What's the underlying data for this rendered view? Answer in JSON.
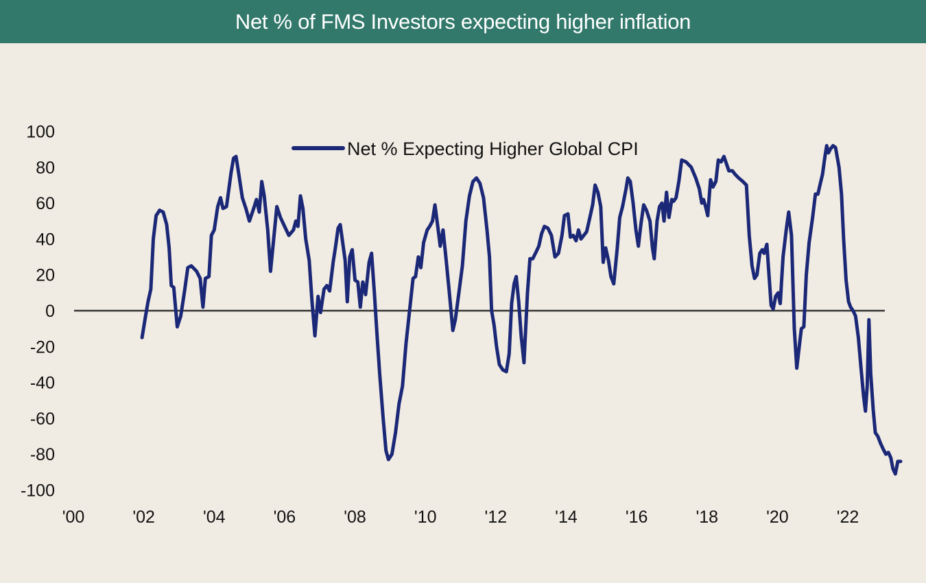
{
  "header": {
    "title": "Net % of FMS Investors expecting higher inflation"
  },
  "colors": {
    "header_bg": "#32796b",
    "line": "#1b2877",
    "zero_line": "#333333",
    "background": "#f1ece3"
  },
  "chart_data": {
    "type": "line",
    "title": "Net % of FMS Investors expecting higher inflation",
    "xlabel": "",
    "ylabel": "",
    "xlim": [
      2000,
      2023.3
    ],
    "ylim": [
      -100,
      100
    ],
    "yticks": [
      100,
      80,
      60,
      40,
      20,
      0,
      -20,
      -40,
      -60,
      -80,
      -100
    ],
    "ytick_labels": [
      "100",
      "80",
      "60",
      "40",
      "20",
      "0",
      "-20",
      "-40",
      "-60",
      "-80",
      "-100"
    ],
    "xticks": [
      2000,
      2002,
      2004,
      2006,
      2008,
      2010,
      2012,
      2014,
      2016,
      2018,
      2020,
      2022
    ],
    "xtick_labels": [
      "'00",
      "'02",
      "'04",
      "'06",
      "'08",
      "'10",
      "'12",
      "'14",
      "'16",
      "'18",
      "'20",
      "'22"
    ],
    "grid": false,
    "zero_line": true,
    "legend": {
      "position": "top-center",
      "entries": [
        "Net % Expecting Higher Global CPI"
      ]
    },
    "series": [
      {
        "name": "Net % Expecting Higher Global CPI",
        "points": [
          [
            2001.95,
            -15
          ],
          [
            2002.05,
            -3
          ],
          [
            2002.12,
            5
          ],
          [
            2002.2,
            12
          ],
          [
            2002.27,
            40
          ],
          [
            2002.35,
            53
          ],
          [
            2002.45,
            56
          ],
          [
            2002.55,
            55
          ],
          [
            2002.65,
            48
          ],
          [
            2002.72,
            35
          ],
          [
            2002.78,
            14
          ],
          [
            2002.85,
            13
          ],
          [
            2002.95,
            -9
          ],
          [
            2003.05,
            -3
          ],
          [
            2003.15,
            10
          ],
          [
            2003.25,
            24
          ],
          [
            2003.35,
            25
          ],
          [
            2003.5,
            22
          ],
          [
            2003.6,
            18
          ],
          [
            2003.68,
            2
          ],
          [
            2003.75,
            18
          ],
          [
            2003.85,
            19
          ],
          [
            2003.92,
            42
          ],
          [
            2004.0,
            45
          ],
          [
            2004.1,
            58
          ],
          [
            2004.18,
            63
          ],
          [
            2004.25,
            57
          ],
          [
            2004.35,
            58
          ],
          [
            2004.48,
            77
          ],
          [
            2004.55,
            85
          ],
          [
            2004.62,
            86
          ],
          [
            2004.7,
            76
          ],
          [
            2004.8,
            63
          ],
          [
            2004.9,
            57
          ],
          [
            2005.0,
            50
          ],
          [
            2005.12,
            57
          ],
          [
            2005.2,
            62
          ],
          [
            2005.28,
            55
          ],
          [
            2005.35,
            72
          ],
          [
            2005.42,
            64
          ],
          [
            2005.52,
            45
          ],
          [
            2005.6,
            22
          ],
          [
            2005.68,
            38
          ],
          [
            2005.78,
            58
          ],
          [
            2005.88,
            52
          ],
          [
            2006.0,
            47
          ],
          [
            2006.12,
            42
          ],
          [
            2006.25,
            45
          ],
          [
            2006.32,
            50
          ],
          [
            2006.38,
            47
          ],
          [
            2006.45,
            64
          ],
          [
            2006.52,
            57
          ],
          [
            2006.6,
            40
          ],
          [
            2006.7,
            28
          ],
          [
            2006.78,
            5
          ],
          [
            2006.86,
            -14
          ],
          [
            2006.95,
            8
          ],
          [
            2007.02,
            -1
          ],
          [
            2007.12,
            12
          ],
          [
            2007.2,
            14
          ],
          [
            2007.28,
            11
          ],
          [
            2007.38,
            27
          ],
          [
            2007.45,
            36
          ],
          [
            2007.52,
            46
          ],
          [
            2007.58,
            48
          ],
          [
            2007.65,
            38
          ],
          [
            2007.72,
            28
          ],
          [
            2007.78,
            5
          ],
          [
            2007.85,
            30
          ],
          [
            2007.92,
            34
          ],
          [
            2008.0,
            17
          ],
          [
            2008.08,
            16
          ],
          [
            2008.15,
            2
          ],
          [
            2008.22,
            16
          ],
          [
            2008.3,
            9
          ],
          [
            2008.4,
            27
          ],
          [
            2008.47,
            32
          ],
          [
            2008.55,
            10
          ],
          [
            2008.62,
            -12
          ],
          [
            2008.7,
            -35
          ],
          [
            2008.8,
            -60
          ],
          [
            2008.88,
            -78
          ],
          [
            2008.95,
            -83
          ],
          [
            2009.05,
            -80
          ],
          [
            2009.15,
            -68
          ],
          [
            2009.25,
            -52
          ],
          [
            2009.35,
            -42
          ],
          [
            2009.45,
            -18
          ],
          [
            2009.55,
            0
          ],
          [
            2009.65,
            18
          ],
          [
            2009.72,
            19
          ],
          [
            2009.8,
            30
          ],
          [
            2009.87,
            24
          ],
          [
            2009.95,
            38
          ],
          [
            2010.05,
            45
          ],
          [
            2010.12,
            47
          ],
          [
            2010.2,
            50
          ],
          [
            2010.27,
            59
          ],
          [
            2010.35,
            47
          ],
          [
            2010.42,
            36
          ],
          [
            2010.5,
            45
          ],
          [
            2010.58,
            30
          ],
          [
            2010.68,
            10
          ],
          [
            2010.78,
            -11
          ],
          [
            2010.85,
            -5
          ],
          [
            2010.95,
            10
          ],
          [
            2011.05,
            25
          ],
          [
            2011.15,
            50
          ],
          [
            2011.25,
            64
          ],
          [
            2011.35,
            72
          ],
          [
            2011.45,
            74
          ],
          [
            2011.55,
            71
          ],
          [
            2011.65,
            63
          ],
          [
            2011.75,
            45
          ],
          [
            2011.82,
            30
          ],
          [
            2011.88,
            0
          ],
          [
            2011.95,
            -8
          ],
          [
            2012.02,
            -20
          ],
          [
            2012.1,
            -30
          ],
          [
            2012.2,
            -33
          ],
          [
            2012.3,
            -34
          ],
          [
            2012.38,
            -24
          ],
          [
            2012.45,
            4
          ],
          [
            2012.52,
            15
          ],
          [
            2012.58,
            19
          ],
          [
            2012.65,
            5
          ],
          [
            2012.72,
            -14
          ],
          [
            2012.8,
            -29
          ],
          [
            2012.9,
            10
          ],
          [
            2012.97,
            29
          ],
          [
            2013.05,
            29
          ],
          [
            2013.15,
            33
          ],
          [
            2013.22,
            36
          ],
          [
            2013.3,
            43
          ],
          [
            2013.38,
            47
          ],
          [
            2013.48,
            46
          ],
          [
            2013.58,
            42
          ],
          [
            2013.68,
            30
          ],
          [
            2013.78,
            32
          ],
          [
            2013.88,
            42
          ],
          [
            2013.95,
            53
          ],
          [
            2014.05,
            54
          ],
          [
            2014.12,
            41
          ],
          [
            2014.2,
            42
          ],
          [
            2014.28,
            39
          ],
          [
            2014.35,
            45
          ],
          [
            2014.42,
            40
          ],
          [
            2014.5,
            42
          ],
          [
            2014.58,
            44
          ],
          [
            2014.65,
            50
          ],
          [
            2014.75,
            59
          ],
          [
            2014.82,
            70
          ],
          [
            2014.9,
            66
          ],
          [
            2014.98,
            58
          ],
          [
            2015.05,
            27
          ],
          [
            2015.12,
            35
          ],
          [
            2015.2,
            28
          ],
          [
            2015.27,
            19
          ],
          [
            2015.35,
            15
          ],
          [
            2015.45,
            35
          ],
          [
            2015.52,
            52
          ],
          [
            2015.6,
            58
          ],
          [
            2015.7,
            68
          ],
          [
            2015.75,
            74
          ],
          [
            2015.82,
            72
          ],
          [
            2015.9,
            60
          ],
          [
            2015.98,
            45
          ],
          [
            2016.05,
            36
          ],
          [
            2016.12,
            48
          ],
          [
            2016.2,
            59
          ],
          [
            2016.28,
            56
          ],
          [
            2016.38,
            50
          ],
          [
            2016.45,
            35
          ],
          [
            2016.5,
            29
          ],
          [
            2016.58,
            50
          ],
          [
            2016.65,
            58
          ],
          [
            2016.72,
            60
          ],
          [
            2016.78,
            50
          ],
          [
            2016.85,
            66
          ],
          [
            2016.92,
            52
          ],
          [
            2017.0,
            62
          ],
          [
            2017.05,
            61
          ],
          [
            2017.12,
            63
          ],
          [
            2017.2,
            72
          ],
          [
            2017.28,
            84
          ],
          [
            2017.4,
            83
          ],
          [
            2017.55,
            80
          ],
          [
            2017.68,
            74
          ],
          [
            2017.78,
            68
          ],
          [
            2017.85,
            60
          ],
          [
            2017.9,
            62
          ],
          [
            2017.96,
            58
          ],
          [
            2018.02,
            53
          ],
          [
            2018.1,
            73
          ],
          [
            2018.17,
            69
          ],
          [
            2018.25,
            72
          ],
          [
            2018.32,
            84
          ],
          [
            2018.4,
            83
          ],
          [
            2018.48,
            86
          ],
          [
            2018.55,
            82
          ],
          [
            2018.62,
            78
          ],
          [
            2018.72,
            78
          ],
          [
            2018.8,
            76
          ],
          [
            2018.9,
            74
          ],
          [
            2019.02,
            72
          ],
          [
            2019.12,
            70
          ],
          [
            2019.2,
            42
          ],
          [
            2019.28,
            25
          ],
          [
            2019.35,
            18
          ],
          [
            2019.42,
            20
          ],
          [
            2019.5,
            32
          ],
          [
            2019.57,
            34
          ],
          [
            2019.62,
            32
          ],
          [
            2019.7,
            37
          ],
          [
            2019.76,
            20
          ],
          [
            2019.82,
            3
          ],
          [
            2019.88,
            1
          ],
          [
            2019.95,
            8
          ],
          [
            2020.02,
            10
          ],
          [
            2020.08,
            4
          ],
          [
            2020.16,
            30
          ],
          [
            2020.25,
            45
          ],
          [
            2020.32,
            55
          ],
          [
            2020.4,
            42
          ],
          [
            2020.48,
            -10
          ],
          [
            2020.55,
            -32
          ],
          [
            2020.62,
            -20
          ],
          [
            2020.68,
            -10
          ],
          [
            2020.75,
            -9
          ],
          [
            2020.82,
            20
          ],
          [
            2020.9,
            38
          ],
          [
            2021.0,
            52
          ],
          [
            2021.08,
            65
          ],
          [
            2021.15,
            65
          ],
          [
            2021.22,
            71
          ],
          [
            2021.28,
            76
          ],
          [
            2021.35,
            86
          ],
          [
            2021.4,
            92
          ],
          [
            2021.45,
            88
          ],
          [
            2021.5,
            90
          ],
          [
            2021.58,
            92
          ],
          [
            2021.65,
            91
          ],
          [
            2021.75,
            80
          ],
          [
            2021.82,
            65
          ],
          [
            2021.88,
            40
          ],
          [
            2021.95,
            17
          ],
          [
            2022.02,
            5
          ],
          [
            2022.08,
            2
          ],
          [
            2022.15,
            0
          ],
          [
            2022.22,
            -3
          ],
          [
            2022.3,
            -15
          ],
          [
            2022.38,
            -33
          ],
          [
            2022.45,
            -48
          ],
          [
            2022.5,
            -56
          ],
          [
            2022.55,
            -42
          ],
          [
            2022.6,
            -5
          ],
          [
            2022.65,
            -35
          ],
          [
            2022.72,
            -55
          ],
          [
            2022.78,
            -68
          ],
          [
            2022.85,
            -70
          ],
          [
            2022.93,
            -74
          ],
          [
            2023.0,
            -77
          ],
          [
            2023.08,
            -80
          ],
          [
            2023.15,
            -79
          ],
          [
            2023.22,
            -82
          ],
          [
            2023.28,
            -88
          ],
          [
            2023.35,
            -91
          ],
          [
            2023.42,
            -84
          ],
          [
            2023.5,
            -84
          ]
        ]
      }
    ]
  }
}
